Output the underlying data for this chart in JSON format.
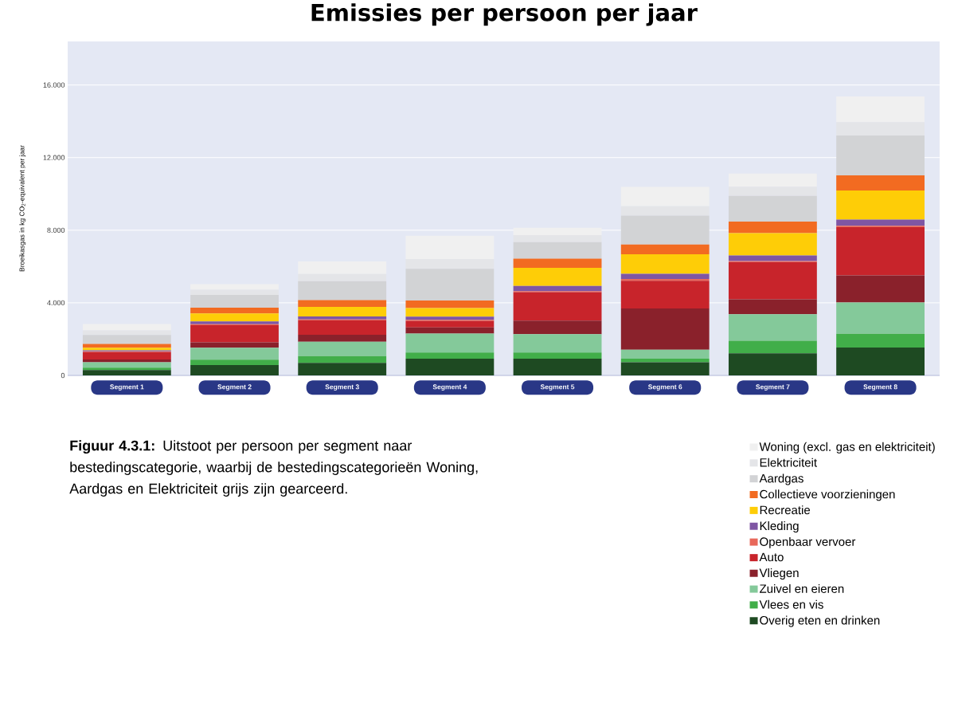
{
  "chart_data": {
    "type": "bar",
    "stacked": true,
    "title": "Emissies per persoon per jaar",
    "ylabel": "Broeikasgas in kg CO$_{2}$-equivalent per jaar",
    "categories": [
      "Segment 1",
      "Segment 2",
      "Segment 3",
      "Segment 4",
      "Segment 5",
      "Segment 6",
      "Segment 7",
      "Segment 8"
    ],
    "series": [
      {
        "name": "Overig eten en drinken",
        "color": "#1e4a22",
        "values": [
          300,
          570,
          690,
          920,
          920,
          720,
          1220,
          1540
        ]
      },
      {
        "name": "Vlees en vis",
        "color": "#41ae49",
        "values": [
          130,
          300,
          380,
          340,
          340,
          200,
          690,
          750
        ]
      },
      {
        "name": "Zuivel en eieren",
        "color": "#84c99a",
        "values": [
          300,
          660,
          790,
          1050,
          1010,
          500,
          1460,
          1730
        ]
      },
      {
        "name": "Vliegen",
        "color": "#8a212b",
        "values": [
          150,
          290,
          380,
          340,
          750,
          2270,
          820,
          1490
        ]
      },
      {
        "name": "Auto",
        "color": "#c8242b",
        "values": [
          400,
          950,
          800,
          360,
          1570,
          1520,
          2060,
          2660
        ]
      },
      {
        "name": "Openbaar vervoer",
        "color": "#e8685a",
        "values": [
          50,
          50,
          50,
          50,
          50,
          100,
          50,
          70
        ]
      },
      {
        "name": "Kleding",
        "color": "#7f56a3",
        "values": [
          50,
          150,
          160,
          180,
          290,
          290,
          310,
          350
        ]
      },
      {
        "name": "Recreatie",
        "color": "#fecd07",
        "values": [
          150,
          440,
          530,
          470,
          1000,
          1070,
          1230,
          1600
        ]
      },
      {
        "name": "Collectieve voorzieningen",
        "color": "#f26b21",
        "values": [
          200,
          320,
          370,
          420,
          500,
          540,
          630,
          830
        ]
      },
      {
        "name": "Aardgas",
        "color": "#d2d3d5",
        "values": [
          500,
          700,
          1040,
          1740,
          920,
          1600,
          1420,
          2200
        ]
      },
      {
        "name": "Elektriciteit",
        "color": "#e4e5e8",
        "values": [
          250,
          290,
          400,
          540,
          380,
          510,
          510,
          730
        ]
      },
      {
        "name": "Woning (excl. gas en elektriciteit)",
        "color": "#f0f0f0",
        "values": [
          350,
          310,
          690,
          1290,
          400,
          1070,
          720,
          1420
        ]
      }
    ],
    "ylim": [
      0,
      18400
    ],
    "yticks": [
      {
        "value": 0,
        "label": "0"
      },
      {
        "value": 4000,
        "label": "4.000"
      },
      {
        "value": 8000,
        "label": "8.000"
      },
      {
        "value": 12000,
        "label": "12.000"
      },
      {
        "value": 16000,
        "label": "16.000"
      }
    ],
    "grid": "y",
    "legend": "bottom right",
    "annotations": [
      "**Figuur 4.3.1:** Uitstoot per persoon per segment naar bestedingscategorie, waarbij de bestedingscategorieën Woning, Aardgas en Elektriciteit grijs zijn gearceerd."
    ]
  }
}
